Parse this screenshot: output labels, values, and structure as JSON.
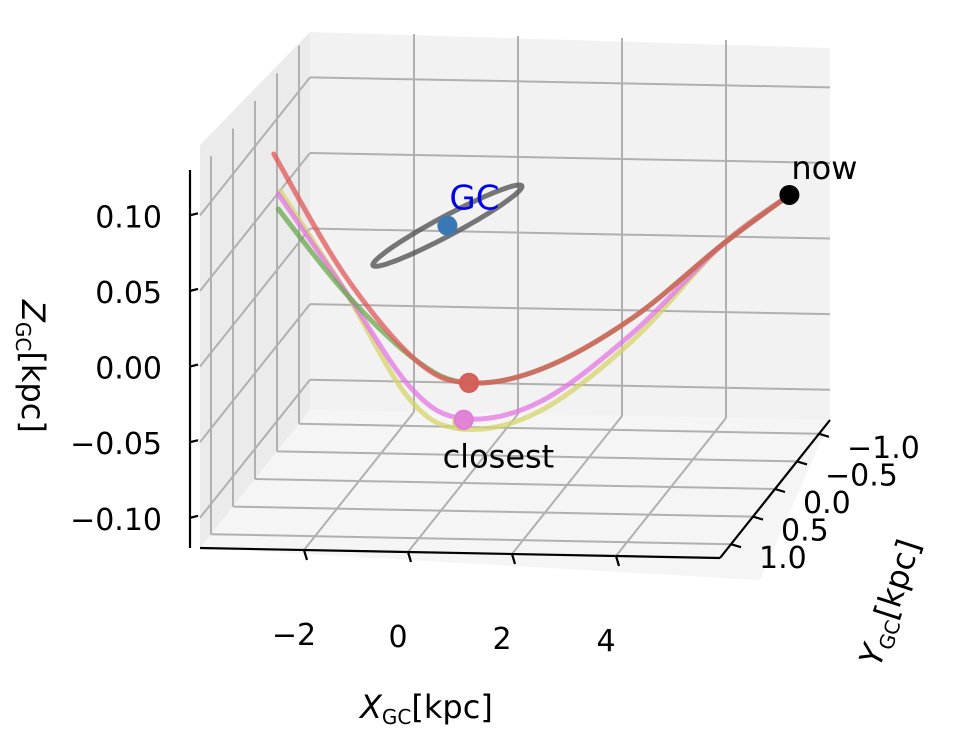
{
  "chart_data": {
    "type": "line",
    "projection": "3d",
    "xlabel": "X",
    "xlabel_sub": "GC",
    "xlabel_unit": "[kpc]",
    "ylabel": "Y",
    "ylabel_sub": "GC",
    "ylabel_unit": "[kpc]",
    "zlabel": "Z",
    "zlabel_sub": "GC",
    "zlabel_unit": "[kpc]",
    "x_ticks": [
      "−2",
      "0",
      "2",
      "4"
    ],
    "y_ticks": [
      "−1.0",
      "−0.5",
      "0.0",
      "0.5",
      "1.0"
    ],
    "z_ticks": [
      "0.10",
      "0.05",
      "0.00",
      "−0.05",
      "−0.10"
    ],
    "xlim": [
      -4,
      6
    ],
    "ylim": [
      -1.25,
      1.25
    ],
    "zlim": [
      -0.12,
      0.13
    ],
    "grid": true,
    "series": [
      {
        "color": "#e15759",
        "points": [
          [
            -3.3,
            0.4,
            0.11
          ],
          [
            -2.0,
            0.35,
            0.03
          ],
          [
            -0.7,
            0.25,
            -0.03
          ],
          [
            0.2,
            0.1,
            -0.05
          ],
          [
            1.5,
            -0.05,
            -0.045
          ],
          [
            3.0,
            -0.3,
            -0.02
          ],
          [
            4.5,
            -0.55,
            0.02
          ],
          [
            5.6,
            -0.8,
            0.045
          ]
        ]
      },
      {
        "color": "#6aa84f",
        "points": [
          [
            -3.3,
            0.3,
            0.07
          ],
          [
            -2.0,
            0.3,
            0.015
          ],
          [
            -0.7,
            0.25,
            -0.03
          ],
          [
            0.2,
            0.1,
            -0.05
          ],
          [
            1.5,
            -0.05,
            -0.045
          ],
          [
            3.0,
            -0.3,
            -0.02
          ],
          [
            4.5,
            -0.55,
            0.02
          ],
          [
            5.6,
            -0.8,
            0.045
          ]
        ]
      },
      {
        "color": "#e377e3",
        "points": [
          [
            -3.3,
            0.3,
            0.08
          ],
          [
            -2.0,
            0.35,
            0.02
          ],
          [
            -0.7,
            0.35,
            -0.045
          ],
          [
            0.2,
            0.2,
            -0.07
          ],
          [
            1.5,
            0.0,
            -0.065
          ],
          [
            3.0,
            -0.3,
            -0.03
          ],
          [
            4.5,
            -0.55,
            0.02
          ],
          [
            5.6,
            -0.8,
            0.045
          ]
        ]
      },
      {
        "color": "#d4d46a",
        "points": [
          [
            -3.3,
            0.25,
            0.08
          ],
          [
            -2.0,
            0.35,
            0.02
          ],
          [
            -0.7,
            0.4,
            -0.05
          ],
          [
            0.2,
            0.25,
            -0.075
          ],
          [
            1.5,
            0.05,
            -0.07
          ],
          [
            3.0,
            -0.3,
            -0.035
          ],
          [
            4.5,
            -0.55,
            0.02
          ],
          [
            5.6,
            -0.8,
            0.045
          ]
        ]
      }
    ],
    "closest_points": [
      {
        "color": "#6aa84f",
        "point": [
          0.2,
          0.1,
          -0.05
        ]
      },
      {
        "color": "#e15759",
        "point": [
          0.2,
          0.1,
          -0.05
        ]
      },
      {
        "color": "#d4d46a",
        "point": [
          0.2,
          0.25,
          -0.07
        ]
      },
      {
        "color": "#e377e3",
        "point": [
          0.2,
          0.22,
          -0.07
        ]
      }
    ],
    "orbit_ellipse": {
      "color": "#555555",
      "center": [
        -0.3,
        0.0,
        0.05
      ],
      "radius": 1.3
    },
    "annotations": [
      {
        "text": "GC",
        "color": "#0000ee",
        "point": [
          -0.3,
          0.0,
          0.05
        ],
        "marker_color": "#3a78b5"
      },
      {
        "text": "now",
        "color": "#000000",
        "point": [
          5.6,
          -0.8,
          0.045
        ],
        "marker_color": "#000000"
      },
      {
        "text": "closest",
        "color": "#000000",
        "point": [
          0.2,
          0.25,
          -0.07
        ]
      }
    ]
  }
}
